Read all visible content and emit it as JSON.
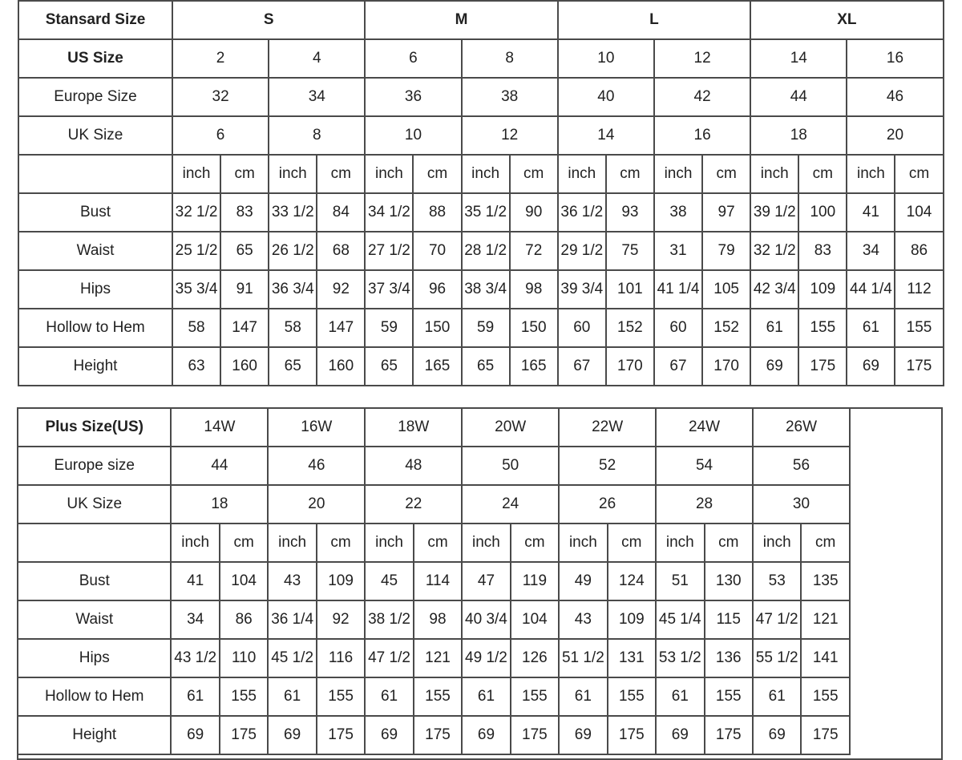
{
  "standard": {
    "header_label": "Stansard Size",
    "groups": [
      "S",
      "M",
      "L",
      "XL"
    ],
    "size_rows": [
      {
        "label": "US Size",
        "bold": true,
        "values": [
          "2",
          "4",
          "6",
          "8",
          "10",
          "12",
          "14",
          "16"
        ]
      },
      {
        "label": "Europe Size",
        "bold": false,
        "values": [
          "32",
          "34",
          "36",
          "38",
          "40",
          "42",
          "44",
          "46"
        ]
      },
      {
        "label": "UK Size",
        "bold": false,
        "values": [
          "6",
          "8",
          "10",
          "12",
          "14",
          "16",
          "18",
          "20"
        ]
      }
    ],
    "units": [
      "inch",
      "cm"
    ],
    "measurements": [
      {
        "label": "Bust",
        "values": [
          "32 1/2",
          "83",
          "33 1/2",
          "84",
          "34 1/2",
          "88",
          "35 1/2",
          "90",
          "36 1/2",
          "93",
          "38",
          "97",
          "39 1/2",
          "100",
          "41",
          "104"
        ]
      },
      {
        "label": "Waist",
        "values": [
          "25 1/2",
          "65",
          "26 1/2",
          "68",
          "27 1/2",
          "70",
          "28 1/2",
          "72",
          "29 1/2",
          "75",
          "31",
          "79",
          "32 1/2",
          "83",
          "34",
          "86"
        ]
      },
      {
        "label": "Hips",
        "values": [
          "35 3/4",
          "91",
          "36 3/4",
          "92",
          "37 3/4",
          "96",
          "38 3/4",
          "98",
          "39 3/4",
          "101",
          "41 1/4",
          "105",
          "42 3/4",
          "109",
          "44 1/4",
          "112"
        ]
      },
      {
        "label": "Hollow to Hem",
        "values": [
          "58",
          "147",
          "58",
          "147",
          "59",
          "150",
          "59",
          "150",
          "60",
          "152",
          "60",
          "152",
          "61",
          "155",
          "61",
          "155"
        ]
      },
      {
        "label": "Height",
        "values": [
          "63",
          "160",
          "65",
          "160",
          "65",
          "165",
          "65",
          "165",
          "67",
          "170",
          "67",
          "170",
          "69",
          "175",
          "69",
          "175"
        ]
      }
    ]
  },
  "plus": {
    "header_label": "Plus Size(US)",
    "sizes": [
      "14W",
      "16W",
      "18W",
      "20W",
      "22W",
      "24W",
      "26W"
    ],
    "size_rows": [
      {
        "label": "Europe size",
        "values": [
          "44",
          "46",
          "48",
          "50",
          "52",
          "54",
          "56"
        ]
      },
      {
        "label": "UK Size",
        "values": [
          "18",
          "20",
          "22",
          "24",
          "26",
          "28",
          "30"
        ]
      }
    ],
    "units": [
      "inch",
      "cm"
    ],
    "measurements": [
      {
        "label": "Bust",
        "values": [
          "41",
          "104",
          "43",
          "109",
          "45",
          "114",
          "47",
          "119",
          "49",
          "124",
          "51",
          "130",
          "53",
          "135"
        ]
      },
      {
        "label": "Waist",
        "values": [
          "34",
          "86",
          "36 1/4",
          "92",
          "38 1/2",
          "98",
          "40 3/4",
          "104",
          "43",
          "109",
          "45 1/4",
          "115",
          "47 1/2",
          "121"
        ]
      },
      {
        "label": "Hips",
        "values": [
          "43 1/2",
          "110",
          "45 1/2",
          "116",
          "47 1/2",
          "121",
          "49 1/2",
          "126",
          "51 1/2",
          "131",
          "53 1/2",
          "136",
          "55 1/2",
          "141"
        ]
      },
      {
        "label": "Hollow to Hem",
        "values": [
          "61",
          "155",
          "61",
          "155",
          "61",
          "155",
          "61",
          "155",
          "61",
          "155",
          "61",
          "155",
          "61",
          "155"
        ]
      },
      {
        "label": "Height",
        "values": [
          "69",
          "175",
          "69",
          "175",
          "69",
          "175",
          "69",
          "175",
          "69",
          "175",
          "69",
          "175",
          "69",
          "175"
        ]
      }
    ]
  }
}
